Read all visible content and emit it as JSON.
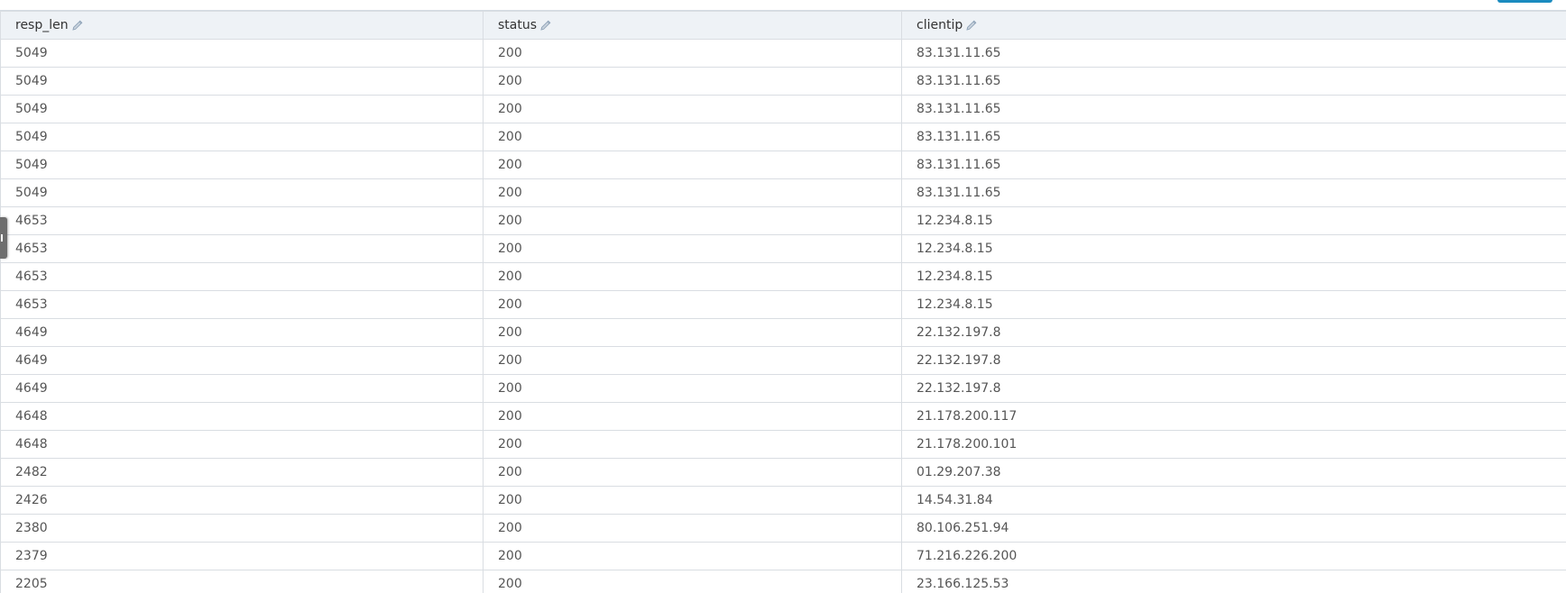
{
  "table": {
    "columns": [
      {
        "key": "resp_len",
        "label": "resp_len",
        "icon": "pencil-icon"
      },
      {
        "key": "status",
        "label": "status",
        "icon": "pencil-icon"
      },
      {
        "key": "clientip",
        "label": "clientip",
        "icon": "pencil-icon"
      }
    ],
    "rows": [
      [
        "5049",
        "200",
        "83.131.11.65"
      ],
      [
        "5049",
        "200",
        "83.131.11.65"
      ],
      [
        "5049",
        "200",
        "83.131.11.65"
      ],
      [
        "5049",
        "200",
        "83.131.11.65"
      ],
      [
        "5049",
        "200",
        "83.131.11.65"
      ],
      [
        "5049",
        "200",
        "83.131.11.65"
      ],
      [
        "4653",
        "200",
        "12.234.8.15"
      ],
      [
        "4653",
        "200",
        "12.234.8.15"
      ],
      [
        "4653",
        "200",
        "12.234.8.15"
      ],
      [
        "4653",
        "200",
        "12.234.8.15"
      ],
      [
        "4649",
        "200",
        "22.132.197.8"
      ],
      [
        "4649",
        "200",
        "22.132.197.8"
      ],
      [
        "4649",
        "200",
        "22.132.197.8"
      ],
      [
        "4648",
        "200",
        "21.178.200.117"
      ],
      [
        "4648",
        "200",
        "21.178.200.101"
      ],
      [
        "2482",
        "200",
        "01.29.207.38"
      ],
      [
        "2426",
        "200",
        "14.54.31.84"
      ],
      [
        "2380",
        "200",
        "80.106.251.94"
      ],
      [
        "2379",
        "200",
        "71.216.226.200"
      ],
      [
        "2205",
        "200",
        "23.166.125.53"
      ]
    ]
  },
  "colors": {
    "header_bg": "#eef2f6",
    "border": "#d9dde2",
    "accent": "#1b8bbf",
    "icon": "#8fa3b8"
  }
}
